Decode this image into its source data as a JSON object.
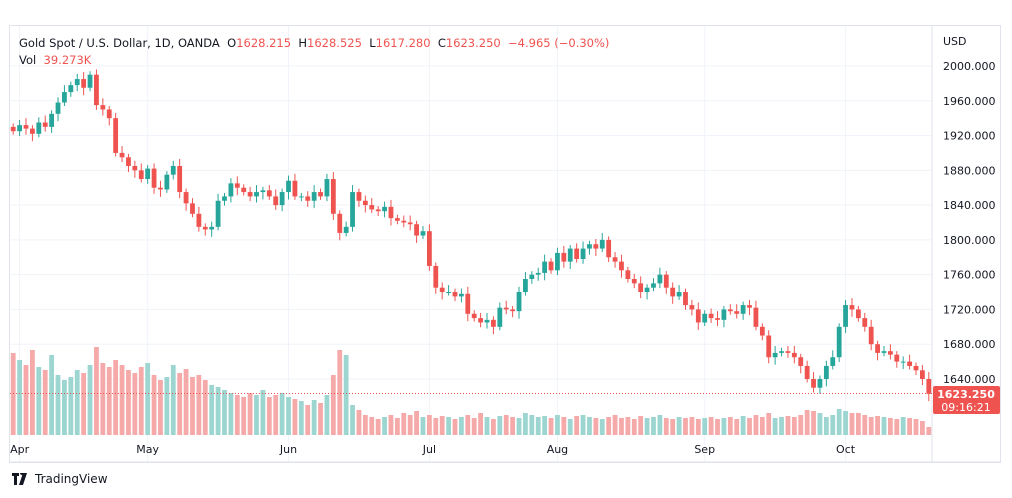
{
  "legend": {
    "symbol": "Gold Spot / U.S. Dollar, 1D, OANDA",
    "o_label": "O",
    "o": "1628.215",
    "h_label": "H",
    "h": "1628.525",
    "l_label": "L",
    "l": "1617.280",
    "c_label": "C",
    "c": "1623.250",
    "change": "−4.965 (−0.30%)",
    "vol_label": "Vol",
    "vol": "39.273K"
  },
  "last_price": {
    "price": "1623.250",
    "countdown": "09:16:21"
  },
  "footer": {
    "brand": "TradingView"
  },
  "colors": {
    "up": "#26a69a",
    "down": "#ef5350",
    "up_vol": "#9dd6d0",
    "down_vol": "#f5a9a8"
  },
  "chart_data": {
    "type": "candlestick",
    "currency": "USD",
    "ylim": [
      1600,
      2040
    ],
    "yticks": [
      "2000.000",
      "1960.000",
      "1920.000",
      "1880.000",
      "1840.000",
      "1800.000",
      "1760.000",
      "1720.000",
      "1680.000",
      "1640.000"
    ],
    "xticks": [
      {
        "label": "Apr",
        "index": 1
      },
      {
        "label": "May",
        "index": 21
      },
      {
        "label": "Jun",
        "index": 43
      },
      {
        "label": "Jul",
        "index": 65
      },
      {
        "label": "Aug",
        "index": 85
      },
      {
        "label": "Sep",
        "index": 108
      },
      {
        "label": "Oct",
        "index": 130
      }
    ],
    "close": [
      1925,
      1932,
      1928,
      1922,
      1935,
      1930,
      1945,
      1958,
      1970,
      1978,
      1985,
      1975,
      1990,
      1955,
      1950,
      1940,
      1900,
      1895,
      1885,
      1880,
      1870,
      1882,
      1860,
      1858,
      1875,
      1885,
      1855,
      1842,
      1830,
      1815,
      1812,
      1815,
      1845,
      1850,
      1865,
      1860,
      1855,
      1850,
      1855,
      1857,
      1850,
      1840,
      1855,
      1868,
      1850,
      1850,
      1845,
      1855,
      1850,
      1870,
      1830,
      1808,
      1815,
      1855,
      1845,
      1840,
      1835,
      1833,
      1838,
      1825,
      1822,
      1820,
      1818,
      1805,
      1810,
      1770,
      1745,
      1740,
      1740,
      1735,
      1738,
      1715,
      1710,
      1705,
      1708,
      1700,
      1722,
      1720,
      1718,
      1740,
      1755,
      1760,
      1762,
      1775,
      1765,
      1785,
      1775,
      1790,
      1778,
      1790,
      1795,
      1790,
      1800,
      1780,
      1775,
      1765,
      1755,
      1750,
      1740,
      1745,
      1750,
      1760,
      1745,
      1735,
      1740,
      1725,
      1720,
      1705,
      1715,
      1710,
      1708,
      1720,
      1718,
      1715,
      1725,
      1722,
      1700,
      1690,
      1665,
      1670,
      1672,
      1670,
      1665,
      1655,
      1640,
      1630,
      1640,
      1655,
      1665,
      1700,
      1725,
      1720,
      1710,
      1700,
      1680,
      1670,
      1672,
      1668,
      1660,
      1660,
      1655,
      1650,
      1640,
      1623
    ],
    "volume": [
      82,
      75,
      70,
      85,
      68,
      65,
      80,
      60,
      55,
      58,
      65,
      62,
      70,
      88,
      72,
      68,
      75,
      70,
      65,
      62,
      68,
      72,
      60,
      55,
      58,
      70,
      62,
      66,
      58,
      60,
      55,
      50,
      48,
      45,
      42,
      40,
      38,
      42,
      40,
      45,
      38,
      40,
      42,
      38,
      36,
      34,
      30,
      35,
      32,
      40,
      60,
      85,
      80,
      30,
      25,
      20,
      18,
      16,
      18,
      20,
      17,
      22,
      20,
      24,
      18,
      20,
      17,
      19,
      18,
      16,
      18,
      20,
      17,
      22,
      18,
      16,
      19,
      20,
      18,
      17,
      22,
      20,
      18,
      19,
      17,
      20,
      18,
      16,
      19,
      20,
      18,
      17,
      16,
      18,
      20,
      17,
      18,
      16,
      19,
      17,
      18,
      20,
      17,
      16,
      18,
      17,
      18,
      16,
      17,
      18,
      16,
      17,
      18,
      16,
      19,
      17,
      20,
      18,
      22,
      17,
      18,
      19,
      18,
      20,
      25,
      24,
      22,
      18,
      20,
      26,
      24,
      22,
      22,
      20,
      18,
      19,
      18,
      17,
      16,
      18,
      17,
      16,
      14,
      8
    ]
  }
}
